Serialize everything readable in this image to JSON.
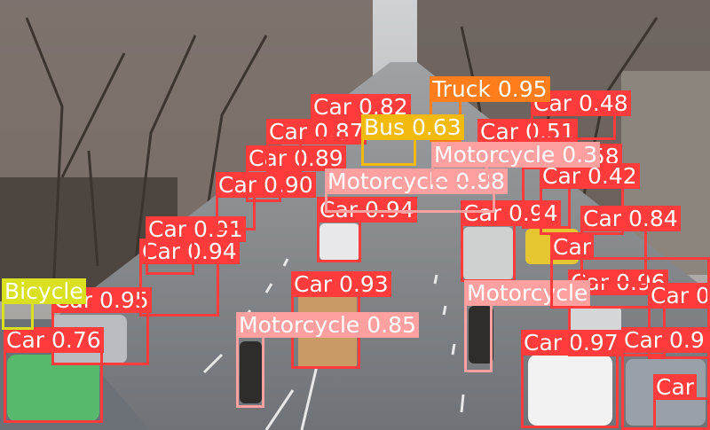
{
  "colors": {
    "Car": "#ff3b3b",
    "Motorcycle": "#ffa0a0",
    "Truck": "#ff7d1a",
    "Bus": "#f2b90f",
    "Bicycle": "#d8e020"
  },
  "detections": [
    {
      "cls": "Car",
      "conf": "0.97"
    },
    {
      "cls": "Car",
      "conf": "0.96"
    },
    {
      "cls": "Car",
      "conf": "0.96"
    },
    {
      "cls": "Car",
      "conf": "0.95"
    },
    {
      "cls": "Car",
      "conf": "0.94"
    },
    {
      "cls": "Car",
      "conf": "0.94"
    },
    {
      "cls": "Car",
      "conf": "0.94"
    },
    {
      "cls": "Car",
      "conf": "0.93"
    },
    {
      "cls": "Car",
      "conf": "0.91"
    },
    {
      "cls": "Car",
      "conf": "0.90"
    },
    {
      "cls": "Car",
      "conf": "0.89"
    },
    {
      "cls": "Car",
      "conf": "0.87"
    },
    {
      "cls": "Car",
      "conf": "0.84"
    },
    {
      "cls": "Car",
      "conf": "0.82"
    },
    {
      "cls": "Car",
      "conf": "0.76"
    },
    {
      "cls": "Car",
      "conf": "0.58"
    },
    {
      "cls": "Car",
      "conf": "0.51"
    },
    {
      "cls": "Car",
      "conf": "0.48"
    },
    {
      "cls": "Car",
      "conf": "0.42"
    },
    {
      "cls": "Truck",
      "conf": "0.95"
    },
    {
      "cls": "Bus",
      "conf": "0.63"
    },
    {
      "cls": "Motorcycle",
      "conf": "0.88"
    },
    {
      "cls": "Motorcycle",
      "conf": "0.85"
    },
    {
      "cls": "Motorcycle",
      "conf": "0.3"
    },
    {
      "cls": "Motorcycle",
      "conf": ""
    },
    {
      "cls": "Bicycle",
      "conf": ""
    },
    {
      "cls": "Car",
      "conf": ""
    },
    {
      "cls": "Car",
      "conf": "0.9"
    },
    {
      "cls": "Car",
      "conf": ""
    }
  ]
}
